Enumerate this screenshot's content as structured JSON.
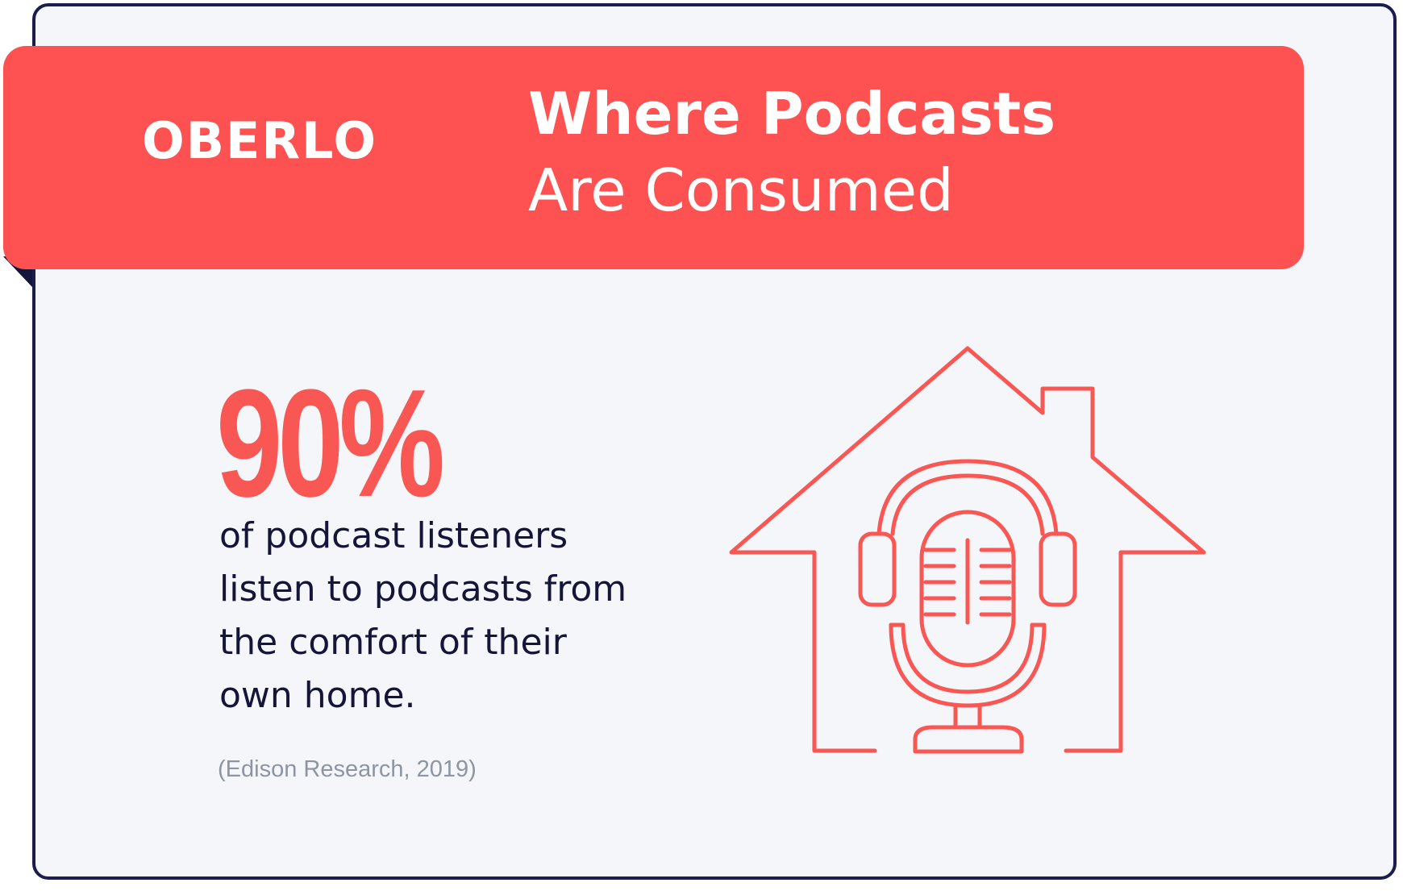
{
  "header": {
    "logo_text": "OBERLO",
    "title_line1": "Where Podcasts",
    "title_line2": "Are Consumed"
  },
  "stat": {
    "value": "90%",
    "description_lines": [
      "of podcast listeners",
      "listen to podcasts from",
      "the comfort of their",
      "own home."
    ],
    "source": "(Edison Research, 2019)"
  },
  "illustration": {
    "icon": "house-with-microphone-and-headphones-icon"
  },
  "colors": {
    "accent": "#FD5251",
    "background": "#F5F6F9",
    "border": "#1C1D4F",
    "text": "#141538",
    "muted": "#8D95A2"
  }
}
